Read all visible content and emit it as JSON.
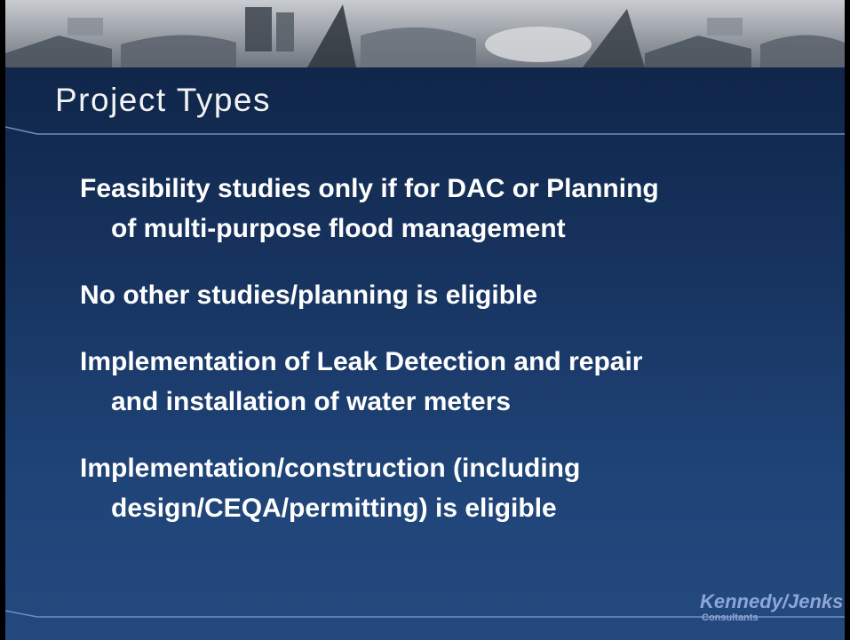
{
  "slide": {
    "title": "Project Types",
    "bullets": [
      [
        "Feasibility studies only if for DAC or Planning",
        "of multi-purpose flood management"
      ],
      [
        "No other studies/planning is eligible"
      ],
      [
        "Implementation of Leak Detection and repair",
        "and installation of water meters"
      ],
      [
        "Implementation/construction (including",
        "design/CEQA/permitting) is eligible"
      ]
    ],
    "logo": {
      "name": "Kennedy/Jenks",
      "tagline": "Consultants"
    }
  }
}
